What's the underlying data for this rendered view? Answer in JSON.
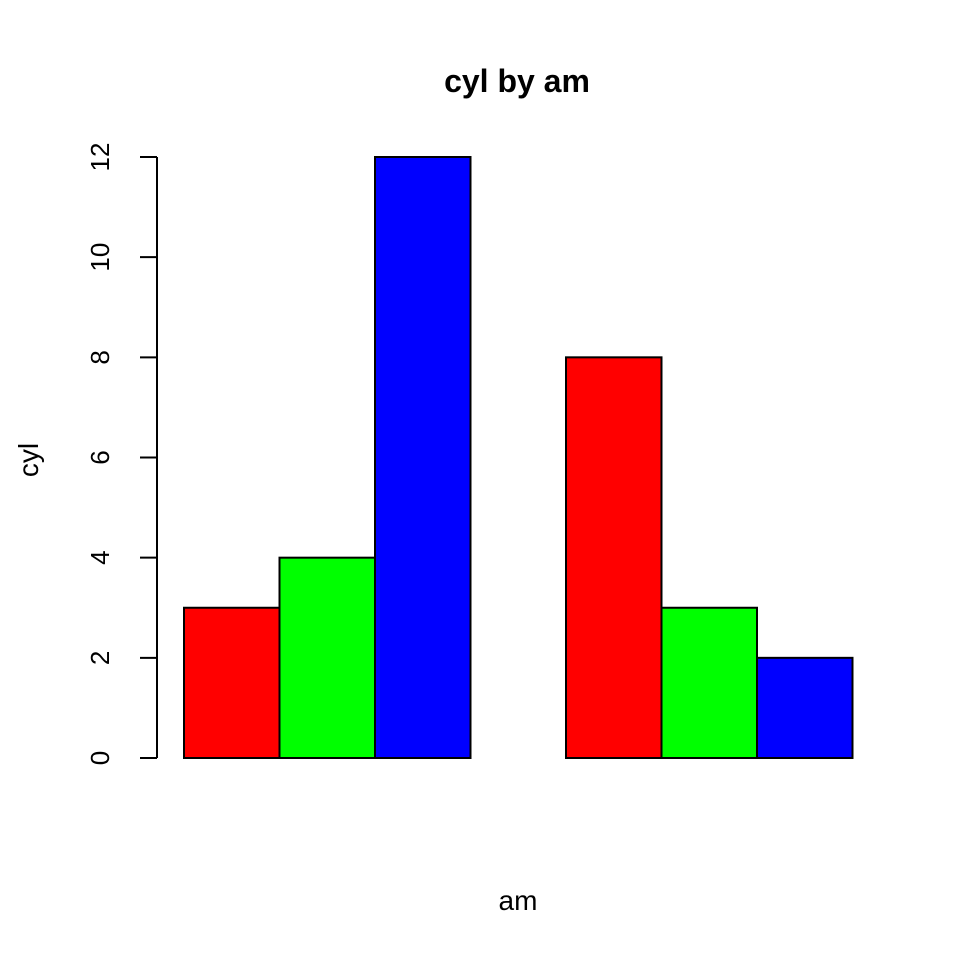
{
  "chart_data": {
    "type": "bar",
    "title": "cyl by am",
    "xlabel": "am",
    "ylabel": "cyl",
    "ylim": [
      0,
      12
    ],
    "yticks": [
      0,
      2,
      4,
      6,
      8,
      10,
      12
    ],
    "grid": false,
    "legend": "none",
    "groups": 2,
    "series": [
      {
        "values": [
          3,
          8
        ],
        "color": "#ff0000"
      },
      {
        "values": [
          4,
          3
        ],
        "color": "#00ff00"
      },
      {
        "values": [
          12,
          2
        ],
        "color": "#0000ff"
      }
    ]
  }
}
